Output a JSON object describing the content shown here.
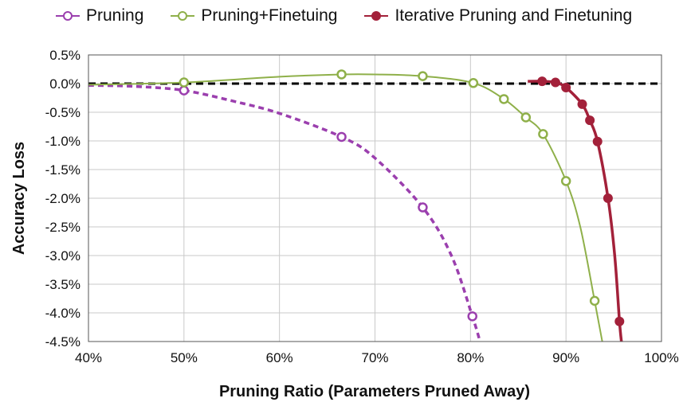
{
  "chart_data": {
    "type": "line",
    "xlabel": "Pruning Ratio (Parameters Pruned Away)",
    "ylabel": "Accuracy Loss",
    "xlim": [
      40,
      100
    ],
    "ylim": [
      -4.5,
      0.5
    ],
    "x_ticks": [
      "40%",
      "50%",
      "60%",
      "70%",
      "80%",
      "90%",
      "100%"
    ],
    "y_ticks": [
      "0.5%",
      "0.0%",
      "-0.5%",
      "-1.0%",
      "-1.5%",
      "-2.0%",
      "-2.5%",
      "-3.0%",
      "-3.5%",
      "-4.0%",
      "-4.5%"
    ],
    "grid": true,
    "legend_position": "top",
    "reference_line": {
      "y": 0.0,
      "style": "dashed",
      "color": "#000000"
    },
    "series": [
      {
        "name": "Pruning",
        "color": "#9b3fae",
        "line_style": "dashed",
        "marker": "hollow-circle",
        "points": [
          [
            50,
            -0.12
          ],
          [
            66.5,
            -0.93
          ],
          [
            75,
            -2.16
          ],
          [
            80.2,
            -4.06
          ]
        ],
        "curve": [
          [
            40,
            -0.03
          ],
          [
            45,
            -0.05
          ],
          [
            50,
            -0.12
          ],
          [
            55,
            -0.3
          ],
          [
            60,
            -0.52
          ],
          [
            66.5,
            -0.93
          ],
          [
            70,
            -1.3
          ],
          [
            75,
            -2.16
          ],
          [
            78,
            -3.0
          ],
          [
            80.2,
            -4.06
          ],
          [
            81,
            -4.5
          ]
        ]
      },
      {
        "name": "Pruning+Finetuing",
        "color": "#8fb04a",
        "line_style": "solid",
        "marker": "hollow-circle",
        "points": [
          [
            50,
            0.02
          ],
          [
            66.5,
            0.16
          ],
          [
            75,
            0.13
          ],
          [
            80.3,
            0.01
          ],
          [
            83.5,
            -0.27
          ],
          [
            85.8,
            -0.59
          ],
          [
            87.6,
            -0.88
          ],
          [
            90,
            -1.7
          ],
          [
            93,
            -3.79
          ]
        ],
        "curve": [
          [
            40,
            -0.02
          ],
          [
            50,
            0.02
          ],
          [
            60,
            0.12
          ],
          [
            66.5,
            0.16
          ],
          [
            70,
            0.16
          ],
          [
            75,
            0.13
          ],
          [
            80.3,
            0.01
          ],
          [
            83.5,
            -0.27
          ],
          [
            85.8,
            -0.59
          ],
          [
            87.6,
            -0.88
          ],
          [
            90,
            -1.7
          ],
          [
            91.5,
            -2.5
          ],
          [
            93,
            -3.79
          ],
          [
            93.8,
            -4.5
          ]
        ]
      },
      {
        "name": "Iterative Pruning and Finetuning",
        "color": "#a3213a",
        "line_style": "solid",
        "marker": "filled-circle",
        "points": [
          [
            87.5,
            0.04
          ],
          [
            88.9,
            0.02
          ],
          [
            90,
            -0.07
          ],
          [
            91.7,
            -0.36
          ],
          [
            92.5,
            -0.64
          ],
          [
            93.3,
            -1.01
          ],
          [
            94.4,
            -2.0
          ],
          [
            95.6,
            -4.15
          ]
        ],
        "curve": [
          [
            86,
            0.04
          ],
          [
            87.5,
            0.04
          ],
          [
            88.9,
            0.02
          ],
          [
            90,
            -0.07
          ],
          [
            91.7,
            -0.36
          ],
          [
            92.5,
            -0.64
          ],
          [
            93.3,
            -1.01
          ],
          [
            94.4,
            -2.0
          ],
          [
            95.1,
            -3.0
          ],
          [
            95.6,
            -4.15
          ],
          [
            95.8,
            -4.5
          ]
        ]
      }
    ]
  }
}
